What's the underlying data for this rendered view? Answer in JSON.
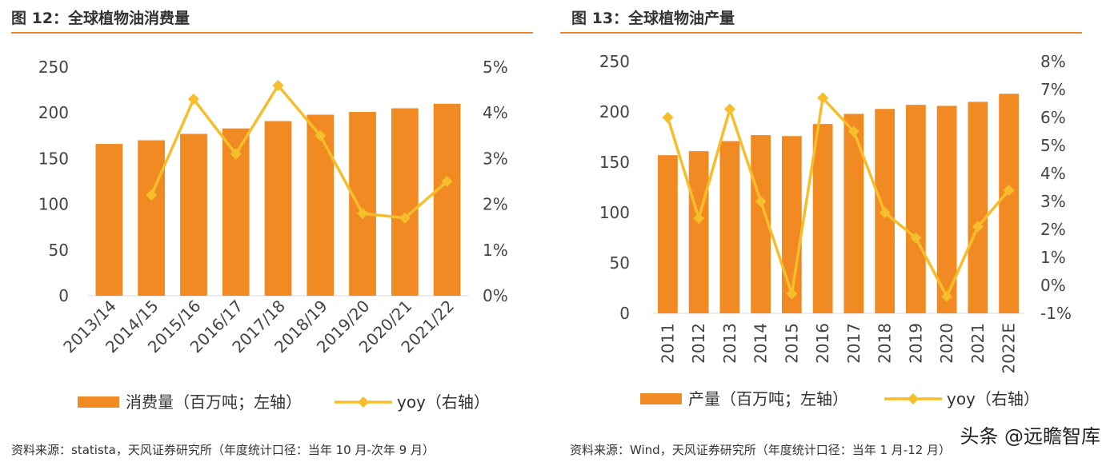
{
  "colors": {
    "bar": "#F28A24",
    "line": "#F5BE2A",
    "rule": "#E98A2E"
  },
  "left": {
    "title": "图 12：全球植物油消费量",
    "source": "资料来源：statista，天风证券研究所（年度统计口径：当年 10 月-次年 9 月）",
    "legend": {
      "bar": "消费量（百万吨；左轴）",
      "line": "yoy（右轴）"
    }
  },
  "right": {
    "title": "图 13：全球植物油产量",
    "source": "资料来源：Wind，天风证券研究所（年度统计口径：当年 1 月-12 月）",
    "legend": {
      "bar": "产量（百万吨；左轴）",
      "line": "yoy（右轴）"
    }
  },
  "watermark": "头条 @远瞻智库",
  "chart_data": [
    {
      "type": "bar",
      "categories": [
        "2013/14",
        "2014/15",
        "2015/16",
        "2016/17",
        "2017/18",
        "2018/19",
        "2019/20",
        "2020/21",
        "2021/22"
      ],
      "series": [
        {
          "name": "消费量（百万吨；左轴）",
          "type": "bar",
          "axis": "left",
          "values": [
            166,
            170,
            177,
            183,
            191,
            198,
            201,
            205,
            210
          ]
        },
        {
          "name": "yoy（右轴）",
          "type": "line",
          "axis": "right",
          "values": [
            null,
            2.2,
            4.3,
            3.1,
            4.6,
            3.5,
            1.8,
            1.7,
            2.5
          ]
        }
      ],
      "y_left": {
        "min": 0,
        "max": 250,
        "ticks": [
          "0",
          "50",
          "100",
          "150",
          "200",
          "250"
        ]
      },
      "y_right": {
        "min": 0,
        "max": 5,
        "ticks": [
          "0%",
          "1%",
          "2%",
          "3%",
          "4%",
          "5%"
        ]
      },
      "grid": false,
      "legend_position": "bottom"
    },
    {
      "type": "bar",
      "categories": [
        "2011",
        "2012",
        "2013",
        "2014",
        "2015",
        "2016",
        "2017",
        "2018",
        "2019",
        "2020",
        "2021",
        "2022E"
      ],
      "series": [
        {
          "name": "产量（百万吨；左轴）",
          "type": "bar",
          "axis": "left",
          "values": [
            157,
            161,
            171,
            177,
            176,
            188,
            198,
            203,
            207,
            206,
            210,
            218
          ]
        },
        {
          "name": "yoy（右轴）",
          "type": "line",
          "axis": "right",
          "values": [
            6.0,
            2.4,
            6.3,
            3.0,
            -0.3,
            6.7,
            5.5,
            2.6,
            1.7,
            -0.4,
            2.1,
            3.4
          ]
        }
      ],
      "y_left": {
        "min": 0,
        "max": 250,
        "ticks": [
          "0",
          "50",
          "100",
          "150",
          "200",
          "250"
        ]
      },
      "y_right": {
        "min": -1,
        "max": 8,
        "ticks": [
          "-1%",
          "0%",
          "1%",
          "2%",
          "3%",
          "4%",
          "5%",
          "6%",
          "7%",
          "8%"
        ]
      },
      "grid": false,
      "legend_position": "bottom"
    }
  ]
}
